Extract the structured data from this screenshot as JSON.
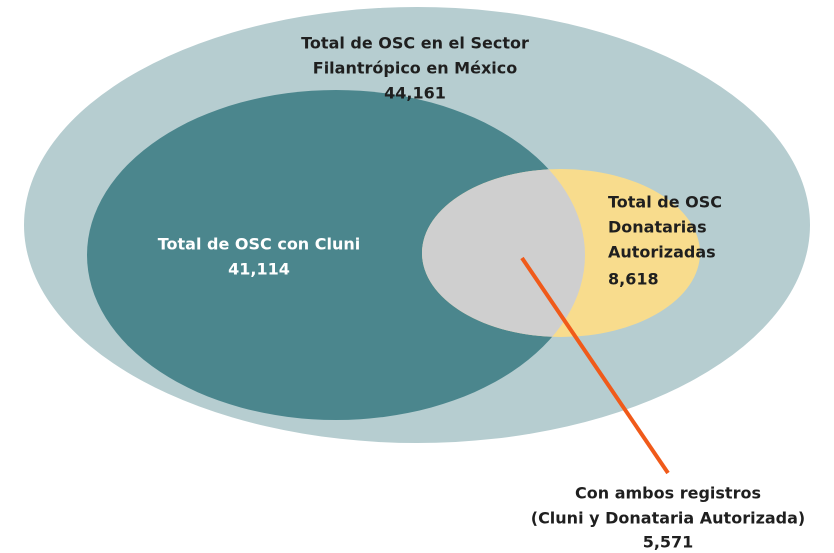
{
  "sets": [
    {
      "lines": [
        "Total de OSC en el Sector",
        "Filantrópico en México"
      ],
      "value": "44,161"
    },
    {
      "lines": [
        "Total de OSC con Cluni"
      ],
      "value": "41,114"
    },
    {
      "lines": [
        "Total de OSC",
        "Donatarias",
        "Autorizadas"
      ],
      "value": "8,618"
    }
  ],
  "intersection": {
    "lines": [
      "Con ambos registros",
      "(Cluni y Donataria Autorizada)"
    ],
    "value": "5,571"
  }
}
